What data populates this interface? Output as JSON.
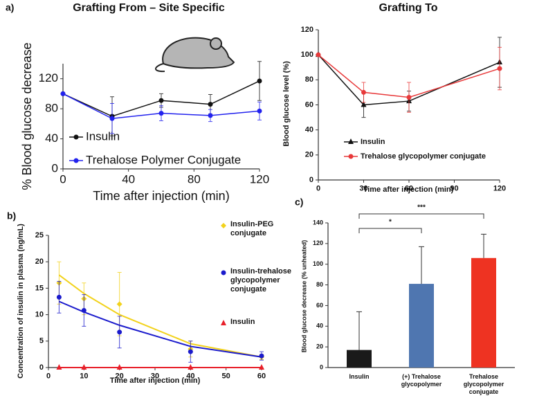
{
  "chart_data": [
    {
      "type": "line",
      "panel_label": "a)",
      "title": "Grafting From – Site Specific",
      "x_label": "Time after injection (min)",
      "y_label": "% Blood glucose decrease",
      "x": [
        0,
        30,
        60,
        90,
        120
      ],
      "xlim": [
        0,
        120
      ],
      "xticks": [
        0,
        40,
        80,
        120
      ],
      "ylim": [
        0,
        140
      ],
      "yticks": [
        0,
        40,
        80,
        120
      ],
      "series": [
        {
          "name": "Insulin",
          "color": "#111111",
          "marker": "circle",
          "values": [
            100,
            70,
            91,
            86,
            117
          ],
          "errors": [
            null,
            26,
            9,
            13,
            26
          ]
        },
        {
          "name": "Trehalose Polymer Conjugate",
          "color": "#2222ee",
          "marker": "circle",
          "values": [
            100,
            67,
            74,
            71,
            77
          ],
          "errors": [
            null,
            20,
            10,
            8,
            12
          ]
        }
      ]
    },
    {
      "type": "line",
      "title": "Grafting To",
      "x_label": "Time after injection (min)",
      "y_label": "Blood glucose level (%)",
      "x": [
        0,
        30,
        60,
        120
      ],
      "xlim": [
        0,
        120
      ],
      "xticks": [
        0,
        30,
        60,
        90,
        120
      ],
      "ylim": [
        0,
        120
      ],
      "yticks": [
        0,
        20,
        40,
        60,
        80,
        100,
        120
      ],
      "series": [
        {
          "name": "Insulin",
          "color": "#111111",
          "marker": "triangle",
          "values": [
            100,
            60,
            63,
            94
          ],
          "errors": [
            null,
            10,
            8,
            20
          ]
        },
        {
          "name": "Trehalose glycopolymer conjugate",
          "color": "#e8393a",
          "marker": "circle",
          "values": [
            100,
            70,
            66,
            89
          ],
          "errors": [
            null,
            8,
            12,
            17
          ]
        }
      ]
    },
    {
      "type": "line",
      "panel_label": "b)",
      "x_label": "Time after injection (min)",
      "y_label": "Concentration of insulin in plasma (ng/mL)",
      "x": [
        3,
        10,
        20,
        40,
        60
      ],
      "xlim": [
        0,
        60
      ],
      "xticks": [
        0,
        10,
        20,
        30,
        40,
        50,
        60
      ],
      "ylim": [
        0,
        25
      ],
      "yticks": [
        0,
        5,
        10,
        15,
        20,
        25
      ],
      "series": [
        {
          "name": "Insulin-PEG conjugate",
          "color": "#f2d21b",
          "marker": "diamond",
          "values": [
            16,
            13,
            12,
            3.5,
            2
          ],
          "errors": [
            4,
            3,
            6,
            1.5,
            0.5
          ],
          "fit": [
            17.5,
            14,
            10,
            4.5,
            2
          ]
        },
        {
          "name": "Insulin-trehalose glycopolymer conjugate",
          "color": "#1a1acc",
          "marker": "circle",
          "values": [
            13.3,
            10.8,
            6.7,
            3,
            2.2
          ],
          "errors": [
            3,
            3,
            3,
            2,
            0.8
          ],
          "fit": [
            12.5,
            10.5,
            8,
            4,
            2
          ]
        },
        {
          "name": "Insulin",
          "color": "#e8202a",
          "marker": "triangle",
          "values": [
            0,
            0,
            0,
            0,
            0
          ],
          "errors": [
            null,
            null,
            null,
            null,
            null
          ],
          "fit": [
            0,
            0,
            0,
            0,
            0
          ]
        }
      ]
    },
    {
      "type": "bar",
      "panel_label": "c)",
      "y_label": "Blood glucose decrease (% unheated)",
      "categories": [
        "Insulin",
        "(+) Trehalose glycopolymer",
        "Trehalose glycopolymer conjugate"
      ],
      "values": [
        17,
        81,
        106
      ],
      "errors": [
        37,
        36,
        23
      ],
      "colors": [
        "#1a1a1a",
        "#4f76b0",
        "#ee3322"
      ],
      "ylim": [
        0,
        140
      ],
      "yticks": [
        0,
        20,
        40,
        60,
        80,
        100,
        120,
        140
      ],
      "annotations": [
        "*",
        "***"
      ]
    }
  ]
}
